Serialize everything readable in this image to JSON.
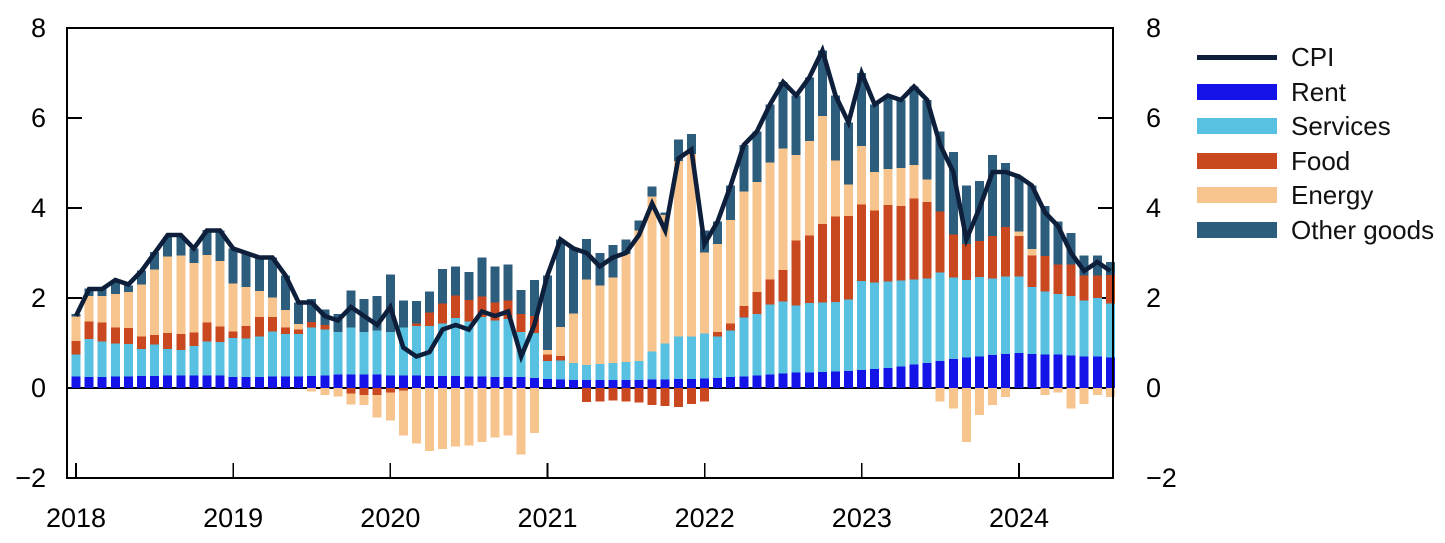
{
  "chart_data": {
    "type": "bar",
    "subtype": "stacked-bars-with-line",
    "title": "",
    "xlabel": "",
    "ylabel": "",
    "ylim": [
      -2,
      8
    ],
    "grid": false,
    "legend_position": "right",
    "yticks": [
      -2,
      0,
      2,
      4,
      6,
      8
    ],
    "ytick_labels": [
      "−2",
      "0",
      "2",
      "4",
      "6",
      "8"
    ],
    "xtick_labels": [
      "2018",
      "2019",
      "2020",
      "2021",
      "2022",
      "2023",
      "2024"
    ],
    "months": [
      "2018-01",
      "2018-02",
      "2018-03",
      "2018-04",
      "2018-05",
      "2018-06",
      "2018-07",
      "2018-08",
      "2018-09",
      "2018-10",
      "2018-11",
      "2018-12",
      "2019-01",
      "2019-02",
      "2019-03",
      "2019-04",
      "2019-05",
      "2019-06",
      "2019-07",
      "2019-08",
      "2019-09",
      "2019-10",
      "2019-11",
      "2019-12",
      "2020-01",
      "2020-02",
      "2020-03",
      "2020-04",
      "2020-05",
      "2020-06",
      "2020-07",
      "2020-08",
      "2020-09",
      "2020-10",
      "2020-11",
      "2020-12",
      "2021-01",
      "2021-02",
      "2021-03",
      "2021-04",
      "2021-05",
      "2021-06",
      "2021-07",
      "2021-08",
      "2021-09",
      "2021-10",
      "2021-11",
      "2021-12",
      "2022-01",
      "2022-02",
      "2022-03",
      "2022-04",
      "2022-05",
      "2022-06",
      "2022-07",
      "2022-08",
      "2022-09",
      "2022-10",
      "2022-11",
      "2022-12",
      "2023-01",
      "2023-02",
      "2023-03",
      "2023-04",
      "2023-05",
      "2023-06",
      "2023-07",
      "2023-08",
      "2023-09",
      "2023-10",
      "2023-11",
      "2023-12",
      "2024-01",
      "2024-02",
      "2024-03",
      "2024-04",
      "2024-05",
      "2024-06",
      "2024-07",
      "2024-08"
    ],
    "series": [
      {
        "name": "Rent",
        "color": "#1414e8",
        "values": [
          0.26,
          0.25,
          0.25,
          0.26,
          0.26,
          0.27,
          0.27,
          0.28,
          0.28,
          0.28,
          0.28,
          0.28,
          0.25,
          0.25,
          0.25,
          0.26,
          0.26,
          0.26,
          0.27,
          0.28,
          0.3,
          0.3,
          0.3,
          0.3,
          0.28,
          0.28,
          0.28,
          0.27,
          0.27,
          0.27,
          0.26,
          0.26,
          0.25,
          0.25,
          0.24,
          0.22,
          0.2,
          0.19,
          0.18,
          0.18,
          0.18,
          0.18,
          0.18,
          0.18,
          0.19,
          0.19,
          0.2,
          0.2,
          0.21,
          0.22,
          0.24,
          0.26,
          0.28,
          0.3,
          0.32,
          0.34,
          0.35,
          0.36,
          0.37,
          0.38,
          0.4,
          0.42,
          0.45,
          0.48,
          0.52,
          0.56,
          0.6,
          0.65,
          0.68,
          0.7,
          0.73,
          0.76,
          0.78,
          0.76,
          0.75,
          0.74,
          0.72,
          0.7,
          0.7,
          0.68
        ]
      },
      {
        "name": "Services",
        "color": "#58c1e1",
        "values": [
          0.48,
          0.84,
          0.78,
          0.73,
          0.72,
          0.6,
          0.7,
          0.59,
          0.57,
          0.65,
          0.75,
          0.74,
          0.86,
          0.85,
          0.9,
          1.0,
          0.94,
          0.94,
          1.07,
          1.02,
          0.95,
          1.05,
          0.95,
          0.98,
          0.97,
          1.07,
          1.1,
          1.11,
          1.16,
          1.29,
          1.22,
          1.32,
          1.25,
          1.28,
          1.01,
          1.0,
          0.4,
          0.42,
          0.38,
          0.33,
          0.35,
          0.38,
          0.4,
          0.42,
          0.62,
          0.8,
          0.95,
          0.95,
          1.0,
          0.93,
          1.04,
          1.31,
          1.37,
          1.56,
          1.6,
          1.49,
          1.54,
          1.54,
          1.54,
          1.59,
          1.98,
          1.93,
          1.92,
          1.91,
          1.89,
          1.87,
          1.97,
          1.81,
          1.72,
          1.77,
          1.7,
          1.72,
          1.7,
          1.48,
          1.4,
          1.35,
          1.33,
          1.25,
          1.3,
          1.2
        ]
      },
      {
        "name": "Food",
        "color": "#c9481f",
        "values": [
          0.3,
          0.39,
          0.43,
          0.35,
          0.35,
          0.28,
          0.21,
          0.35,
          0.35,
          0.3,
          0.43,
          0.35,
          0.15,
          0.28,
          0.43,
          0.32,
          0.15,
          0.1,
          0.13,
          0.1,
          0.0,
          -0.12,
          -0.15,
          -0.15,
          -0.1,
          -0.05,
          0.05,
          0.3,
          0.45,
          0.5,
          0.48,
          0.45,
          0.4,
          0.42,
          0.4,
          0.38,
          0.15,
          0.1,
          0.0,
          -0.31,
          -0.3,
          -0.28,
          -0.3,
          -0.32,
          -0.38,
          -0.4,
          -0.42,
          -0.35,
          -0.3,
          0.1,
          0.15,
          0.25,
          0.48,
          0.55,
          0.7,
          1.45,
          1.5,
          1.75,
          1.9,
          1.85,
          1.7,
          1.6,
          1.7,
          1.65,
          1.8,
          1.7,
          1.35,
          0.95,
          0.8,
          0.8,
          0.95,
          1.1,
          0.9,
          0.7,
          0.78,
          0.65,
          0.7,
          0.55,
          0.5,
          0.63
        ]
      },
      {
        "name": "Energy",
        "color": "#f7c48e",
        "values": [
          0.55,
          0.57,
          0.59,
          0.75,
          0.8,
          1.15,
          1.45,
          1.7,
          1.75,
          1.55,
          1.5,
          1.45,
          1.06,
          0.86,
          0.58,
          0.43,
          0.38,
          0.12,
          -0.08,
          -0.15,
          -0.19,
          -0.25,
          -0.23,
          -0.5,
          -0.62,
          -1.0,
          -1.23,
          -1.4,
          -1.35,
          -1.3,
          -1.28,
          -1.2,
          -1.1,
          -1.05,
          -1.48,
          -1.0,
          0.1,
          0.65,
          1.1,
          1.9,
          1.75,
          1.9,
          2.4,
          2.9,
          3.45,
          2.85,
          3.9,
          4.05,
          1.8,
          1.95,
          2.3,
          2.55,
          2.45,
          2.6,
          2.7,
          1.9,
          2.1,
          2.4,
          1.25,
          0.7,
          1.3,
          0.85,
          0.8,
          0.85,
          0.75,
          0.5,
          -0.3,
          -0.45,
          -1.2,
          -0.6,
          -0.38,
          -0.2,
          0.1,
          0.15,
          -0.15,
          -0.1,
          -0.45,
          -0.35,
          -0.15,
          -0.2
        ]
      },
      {
        "name": "Other goods",
        "color": "#2d5d7c",
        "values": [
          0.05,
          0.16,
          0.16,
          0.26,
          0.15,
          0.31,
          0.39,
          0.44,
          0.41,
          0.32,
          0.55,
          0.68,
          0.78,
          0.76,
          0.74,
          0.89,
          0.77,
          0.48,
          0.51,
          0.35,
          0.39,
          0.82,
          0.73,
          0.77,
          1.27,
          0.6,
          0.5,
          0.47,
          0.77,
          0.64,
          0.62,
          0.87,
          0.8,
          0.8,
          0.53,
          0.8,
          1.65,
          1.94,
          1.44,
          0.9,
          0.72,
          0.72,
          0.32,
          0.22,
          0.22,
          0.06,
          0.47,
          0.45,
          0.49,
          0.5,
          0.77,
          1.03,
          1.12,
          1.29,
          1.48,
          1.32,
          1.41,
          1.45,
          1.44,
          1.38,
          1.62,
          1.5,
          1.63,
          1.51,
          1.74,
          1.77,
          1.78,
          1.84,
          1.3,
          1.33,
          1.8,
          1.42,
          1.22,
          1.41,
          1.12,
          0.96,
          0.7,
          0.45,
          0.45,
          0.29
        ]
      }
    ],
    "line": {
      "name": "CPI",
      "color": "#0e1f3b",
      "values": [
        1.6,
        2.2,
        2.2,
        2.4,
        2.3,
        2.6,
        3.0,
        3.4,
        3.4,
        3.1,
        3.5,
        3.5,
        3.1,
        3.0,
        2.9,
        2.9,
        2.5,
        1.9,
        1.9,
        1.6,
        1.5,
        1.8,
        1.6,
        1.4,
        1.8,
        0.9,
        0.7,
        0.8,
        1.3,
        1.4,
        1.3,
        1.7,
        1.6,
        1.7,
        0.7,
        1.4,
        2.5,
        3.3,
        3.1,
        3.0,
        2.7,
        2.9,
        3.0,
        3.4,
        4.1,
        3.5,
        5.1,
        5.3,
        3.2,
        3.7,
        4.5,
        5.4,
        5.7,
        6.3,
        6.8,
        6.5,
        6.9,
        7.5,
        6.5,
        5.9,
        7.0,
        6.3,
        6.5,
        6.4,
        6.7,
        6.4,
        5.4,
        4.8,
        3.3,
        4.0,
        4.8,
        4.8,
        4.7,
        4.5,
        3.9,
        3.6,
        3.0,
        2.6,
        2.8,
        2.6
      ]
    }
  },
  "legend": {
    "items": [
      {
        "label": "CPI",
        "swatch": "line",
        "color": "#0e1f3b"
      },
      {
        "label": "Rent",
        "swatch": "box",
        "color": "#1414e8"
      },
      {
        "label": "Services",
        "swatch": "box",
        "color": "#58c1e1"
      },
      {
        "label": "Food",
        "swatch": "box",
        "color": "#c9481f"
      },
      {
        "label": "Energy",
        "swatch": "box",
        "color": "#f7c48e"
      },
      {
        "label": "Other goods",
        "swatch": "box",
        "color": "#2d5d7c"
      }
    ]
  }
}
